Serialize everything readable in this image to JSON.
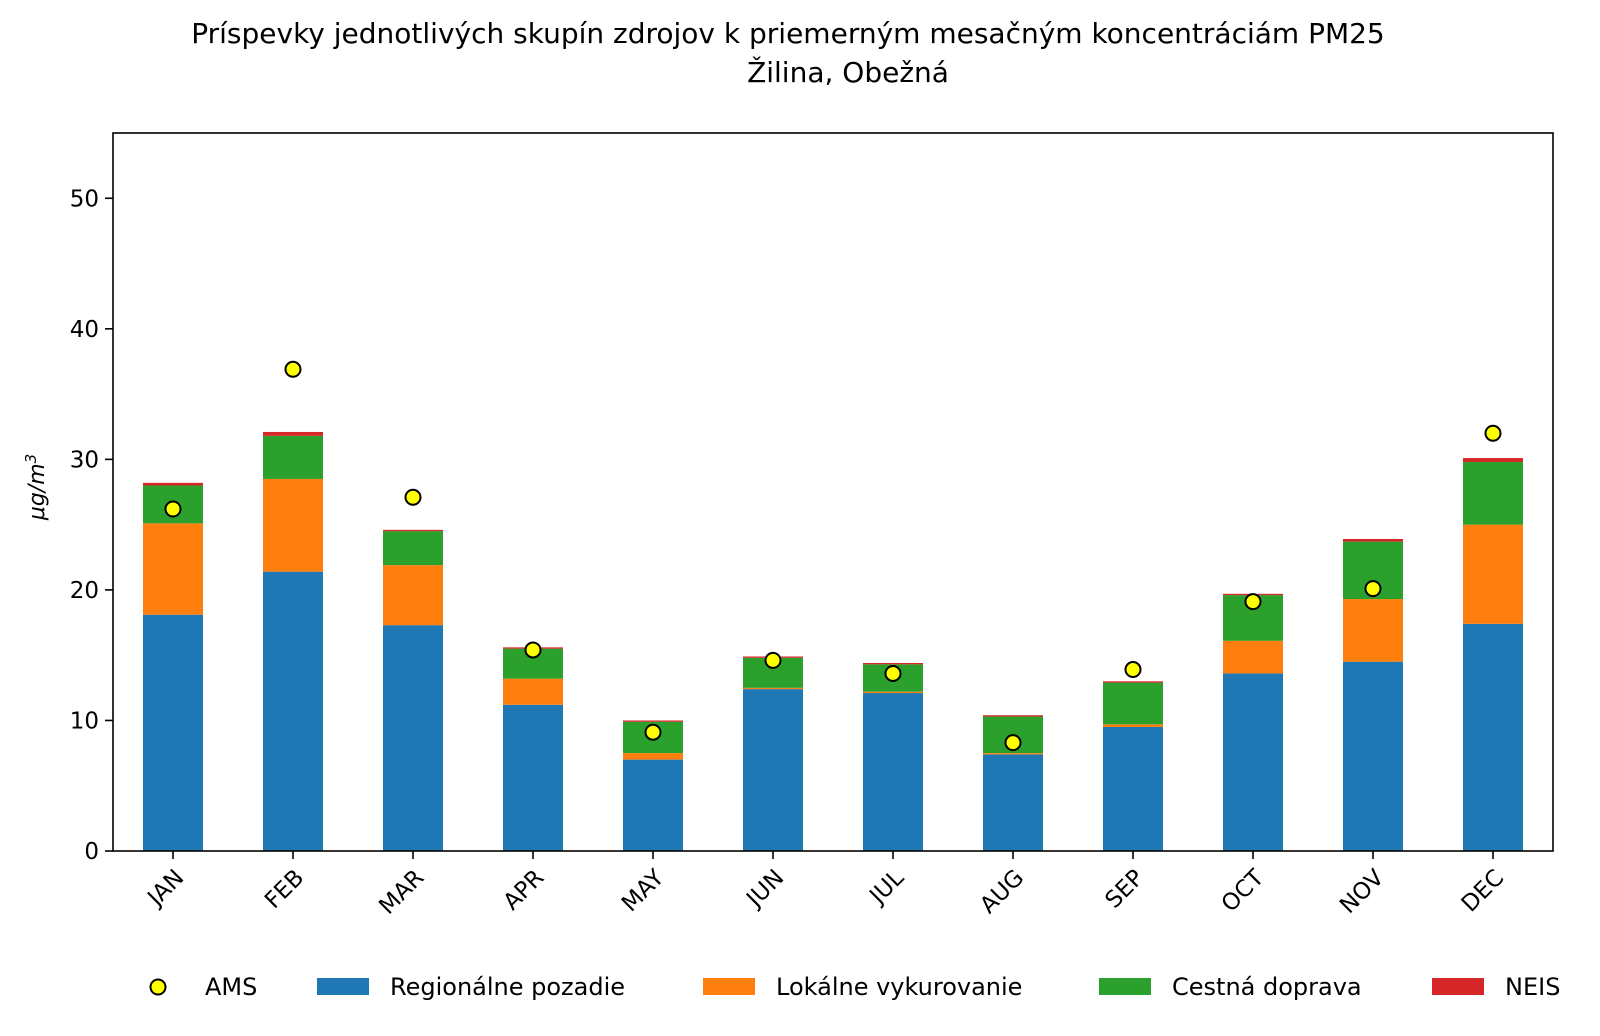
{
  "chart_data": {
    "type": "bar",
    "stacked": true,
    "title": "Príspevky jednotlivých skupín zdrojov k priemerným mesačným koncentráciám PM25",
    "subtitle": "Žilina, Obežná",
    "xlabel": "",
    "ylabel_base": "μg/m",
    "ylabel_sup": "3",
    "ylim": [
      0,
      55
    ],
    "yticks": [
      0,
      10,
      20,
      30,
      40,
      50
    ],
    "categories": [
      "JAN",
      "FEB",
      "MAR",
      "APR",
      "MAY",
      "JUN",
      "JUL",
      "AUG",
      "SEP",
      "OCT",
      "NOV",
      "DEC"
    ],
    "series": [
      {
        "name": "Regionálne pozadie",
        "color": "#1f77b4",
        "values": [
          18.1,
          21.4,
          17.3,
          11.2,
          7.0,
          12.4,
          12.1,
          7.4,
          9.5,
          13.6,
          14.5,
          17.4
        ]
      },
      {
        "name": "Lokálne vykurovanie",
        "color": "#ff7f0e",
        "values": [
          7.0,
          7.1,
          4.6,
          2.0,
          0.5,
          0.1,
          0.1,
          0.1,
          0.2,
          2.5,
          4.8,
          7.6
        ]
      },
      {
        "name": "Cestná doprava",
        "color": "#2ca02c",
        "values": [
          2.9,
          3.3,
          2.6,
          2.3,
          2.4,
          2.3,
          2.1,
          2.8,
          3.2,
          3.5,
          4.4,
          4.8
        ]
      },
      {
        "name": "NEIS",
        "color": "#d62728",
        "values": [
          0.2,
          0.3,
          0.1,
          0.1,
          0.1,
          0.1,
          0.1,
          0.1,
          0.1,
          0.1,
          0.2,
          0.3
        ]
      }
    ],
    "markers": {
      "name": "AMS",
      "color": "#ffff00",
      "edge": "#000000",
      "values": [
        26.2,
        36.9,
        27.1,
        15.4,
        9.1,
        14.6,
        13.6,
        8.3,
        13.9,
        19.1,
        20.1,
        32.0
      ]
    },
    "legend": {
      "placement": "bottom",
      "entries": [
        "AMS",
        "Regionálne pozadie",
        "Lokálne vykurovanie",
        "Cestná doprava",
        "NEIS"
      ]
    },
    "grid": false
  }
}
